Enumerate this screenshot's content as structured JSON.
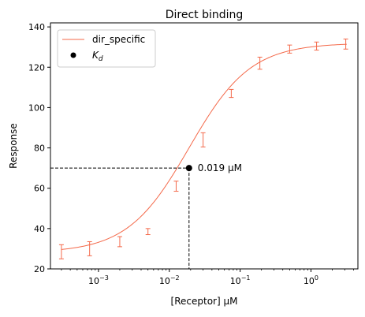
{
  "chart_data": {
    "type": "line",
    "title": "Direct binding",
    "xlabel": "[Receptor] μM",
    "ylabel": "Response",
    "xscale": "log",
    "xlim": [
      0.00021,
      4.6
    ],
    "ylim": [
      20,
      142
    ],
    "x_ticks": [
      {
        "value": 0.001,
        "label": "10",
        "exp": "−3"
      },
      {
        "value": 0.01,
        "label": "10",
        "exp": "−2"
      },
      {
        "value": 0.1,
        "label": "10",
        "exp": "−1"
      },
      {
        "value": 1,
        "label": "10",
        "exp": "0"
      }
    ],
    "y_ticks": [
      20,
      40,
      60,
      80,
      100,
      120,
      140
    ],
    "grid": false,
    "legend": {
      "placement": "top-left",
      "entries": [
        {
          "label": "dir_specific",
          "kind": "line"
        },
        {
          "label": "K",
          "sub": "d",
          "kind": "marker"
        }
      ]
    },
    "series": [
      {
        "name": "dir_specific",
        "color": "#f4694a",
        "fit": {
          "bottom": 28.0,
          "top": 132.0,
          "ec50": 0.019,
          "hill": 1.0
        },
        "points": [
          {
            "x": 0.0003,
            "y": 28.5,
            "err": 3.5
          },
          {
            "x": 0.00075,
            "y": 30.0,
            "err": 3.5
          },
          {
            "x": 0.002,
            "y": 33.5,
            "err": 2.5
          },
          {
            "x": 0.005,
            "y": 38.5,
            "err": 1.5
          },
          {
            "x": 0.0125,
            "y": 61.0,
            "err": 2.5
          },
          {
            "x": 0.03,
            "y": 84.0,
            "err": 3.5
          },
          {
            "x": 0.075,
            "y": 107.0,
            "err": 2.0
          },
          {
            "x": 0.19,
            "y": 122.0,
            "err": 3.0
          },
          {
            "x": 0.5,
            "y": 129.0,
            "err": 2.0
          },
          {
            "x": 1.2,
            "y": 130.5,
            "err": 2.0
          },
          {
            "x": 3.1,
            "y": 131.5,
            "err": 2.5
          }
        ]
      }
    ],
    "kd": {
      "x": 0.019,
      "y": 70.0,
      "label": "0.019 μM",
      "marker_color": "#000000"
    }
  }
}
